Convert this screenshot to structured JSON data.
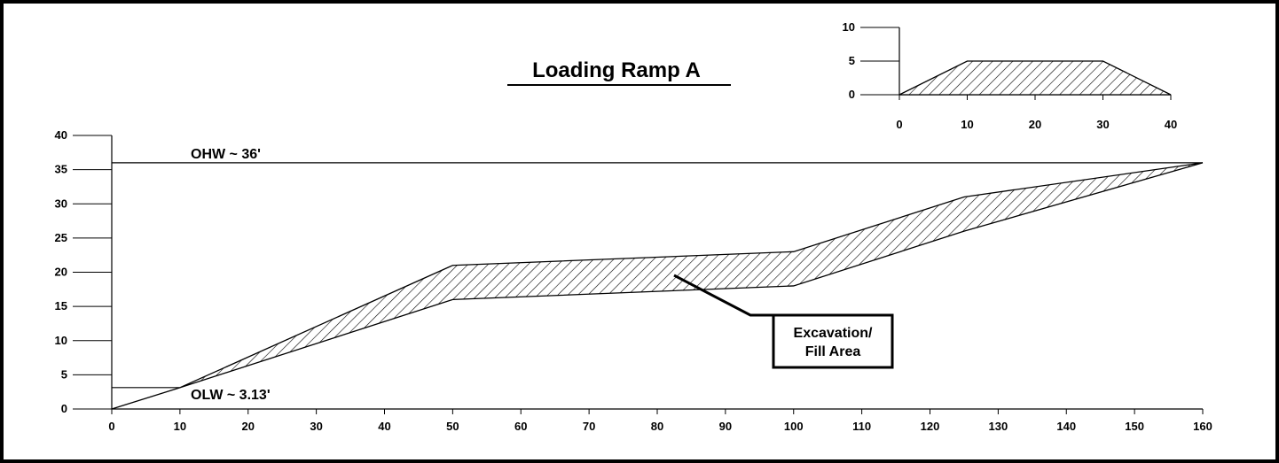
{
  "title": "Loading Ramp A",
  "colors": {
    "ink": "#000000",
    "background": "#ffffff"
  },
  "chart_data": [
    {
      "type": "area",
      "x_ticks": [
        0,
        10,
        20,
        30,
        40,
        50,
        60,
        70,
        80,
        90,
        100,
        110,
        120,
        130,
        140,
        150,
        160
      ],
      "y_ticks": [
        0,
        5,
        10,
        15,
        20,
        25,
        30,
        35,
        40
      ],
      "xlim": [
        0,
        160
      ],
      "ylim": [
        0,
        40
      ],
      "upper_boundary": {
        "x": [
          0,
          10,
          50,
          100,
          125,
          160
        ],
        "y": [
          0,
          3.13,
          21,
          23,
          31,
          36
        ]
      },
      "lower_boundary": {
        "x": [
          0,
          10,
          50,
          100,
          125,
          160
        ],
        "y": [
          0,
          3.13,
          16,
          18,
          26,
          36
        ]
      },
      "fill": "hatched",
      "reference_lines": [
        {
          "label": "OHW ~ 36'",
          "y": 36,
          "x_start": 0,
          "x_end": 160
        },
        {
          "label": "OLW ~ 3.13'",
          "y": 3.13,
          "x_start": 0,
          "x_end": 10
        }
      ],
      "annotation": {
        "text_lines": [
          "Excavation/",
          "Fill Area"
        ],
        "points_to": {
          "x": 82,
          "y": 20
        }
      }
    },
    {
      "type": "area",
      "x_ticks": [
        0,
        10,
        20,
        30,
        40
      ],
      "y_ticks": [
        0,
        5,
        10
      ],
      "xlim": [
        0,
        40
      ],
      "ylim": [
        0,
        10
      ],
      "profile": {
        "x": [
          0,
          10,
          30,
          40
        ],
        "y": [
          0,
          5,
          5,
          0
        ]
      },
      "fill": "hatched"
    }
  ]
}
